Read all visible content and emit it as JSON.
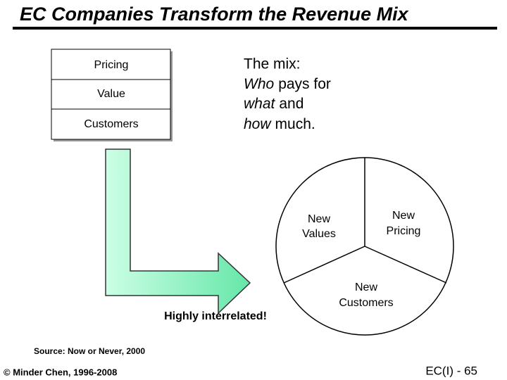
{
  "title": "EC Companies Transform the Revenue Mix",
  "stack": [
    "Pricing",
    "Value",
    "Customers"
  ],
  "mix": {
    "heading": "The mix:",
    "lines": [
      {
        "em": "Who",
        "rest": "pays for"
      },
      {
        "em": "what",
        "rest": "and"
      },
      {
        "em": "how",
        "rest": "much."
      }
    ]
  },
  "pie": {
    "slices": [
      {
        "lines": [
          "New",
          "Values"
        ]
      },
      {
        "lines": [
          "New",
          "Pricing"
        ]
      },
      {
        "lines": [
          "New",
          "Customers"
        ]
      }
    ]
  },
  "note": "Highly interrelated!",
  "source": "Source: Now or Never, 2000",
  "footer": {
    "copyright": "© Minder Chen, 1996-2008",
    "page": "EC(I) - 65"
  }
}
